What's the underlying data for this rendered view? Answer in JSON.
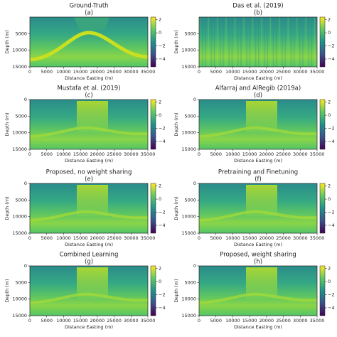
{
  "chart_data": [
    {
      "type": "image",
      "title": "Ground-Truth",
      "subtitle": "(a)",
      "xlabel": "Distance Easting (m)",
      "ylabel": "Depth (m)",
      "colormap": "viridis",
      "xlim": [
        0,
        35000
      ],
      "xticks": [
        0,
        5000,
        10000,
        15000,
        20000,
        25000,
        30000,
        35000
      ],
      "ylim": [
        15000,
        0
      ],
      "yticks": [
        5000,
        10000,
        15000
      ],
      "clim": [
        -5.2,
        2.4
      ],
      "cticks": [
        2,
        0,
        {
          "value": -2,
          "label": "−2"
        },
        {
          "value": -4,
          "label": "−4"
        }
      ]
    },
    {
      "type": "image",
      "title": "Das et al. (2019)",
      "subtitle": "(b)",
      "xlabel": "Distance Easting (m)",
      "ylabel": "Depth (m)",
      "colormap": "viridis",
      "xlim": [
        0,
        35000
      ],
      "xticks": [
        0,
        5000,
        10000,
        15000,
        20000,
        25000,
        30000,
        35000
      ],
      "ylim": [
        15000,
        0
      ],
      "yticks": [
        5000,
        10000,
        15000
      ],
      "clim": [
        -5.2,
        2.4
      ],
      "cticks": [
        2,
        0,
        {
          "value": -2,
          "label": "−2"
        },
        {
          "value": -4,
          "label": "−4"
        }
      ]
    },
    {
      "type": "image",
      "title": "Mustafa et al. (2019)",
      "subtitle": "(c)",
      "xlabel": "Distance Easting (m)",
      "ylabel": "Depth (m)",
      "colormap": "viridis",
      "xlim": [
        0,
        35000
      ],
      "xticks": [
        0,
        5000,
        10000,
        15000,
        20000,
        25000,
        30000,
        35000
      ],
      "ylim": [
        15000,
        0
      ],
      "yticks": [
        0,
        5000,
        10000,
        15000
      ],
      "clim": [
        -5.2,
        2.4
      ],
      "cticks": [
        2,
        0,
        {
          "value": -2,
          "label": "−2"
        },
        {
          "value": -4,
          "label": "−4"
        }
      ]
    },
    {
      "type": "image",
      "title": "Alfarraj and AlRegib (2019a)",
      "subtitle": "(d)",
      "xlabel": "Distance Easting (m)",
      "ylabel": "Depth (m)",
      "colormap": "viridis",
      "xlim": [
        0,
        35000
      ],
      "xticks": [
        0,
        5000,
        10000,
        15000,
        20000,
        25000,
        30000,
        35000
      ],
      "ylim": [
        15000,
        0
      ],
      "yticks": [
        0,
        5000,
        10000,
        15000
      ],
      "clim": [
        -5.2,
        2.4
      ],
      "cticks": [
        2,
        0,
        {
          "value": -2,
          "label": "−2"
        },
        {
          "value": -4,
          "label": "−4"
        }
      ]
    },
    {
      "type": "image",
      "title": "Proposed, no weight sharing",
      "subtitle": "(e)",
      "xlabel": "Distance Easting (m)",
      "ylabel": "Depth (m)",
      "colormap": "viridis",
      "xlim": [
        0,
        35000
      ],
      "xticks": [
        0,
        5000,
        10000,
        15000,
        20000,
        25000,
        30000,
        35000
      ],
      "ylim": [
        15000,
        0
      ],
      "yticks": [
        0,
        5000,
        10000,
        15000
      ],
      "clim": [
        -5.2,
        2.4
      ],
      "cticks": [
        2,
        0,
        {
          "value": -2,
          "label": "−2"
        },
        {
          "value": -4,
          "label": "−4"
        }
      ]
    },
    {
      "type": "image",
      "title": "Pretraining and Finetuning",
      "subtitle": "(f)",
      "xlabel": "Distance Easting (m)",
      "ylabel": "Depth (m)",
      "colormap": "viridis",
      "xlim": [
        0,
        35000
      ],
      "xticks": [
        0,
        5000,
        10000,
        15000,
        20000,
        25000,
        30000,
        35000
      ],
      "ylim": [
        15000,
        0
      ],
      "yticks": [
        0,
        5000,
        10000,
        15000
      ],
      "clim": [
        -5.2,
        2.4
      ],
      "cticks": [
        2,
        0,
        {
          "value": -2,
          "label": "−2"
        },
        {
          "value": -4,
          "label": "−4"
        }
      ]
    },
    {
      "type": "image",
      "title": "Combined Learning",
      "subtitle": "(g)",
      "xlabel": "Distance Easting (m)",
      "ylabel": "Depth (m)",
      "colormap": "viridis",
      "xlim": [
        0,
        35000
      ],
      "xticks": [
        0,
        5000,
        10000,
        15000,
        20000,
        25000,
        30000,
        35000
      ],
      "ylim": [
        15000,
        0
      ],
      "yticks": [
        0,
        5000,
        10000,
        15000
      ],
      "clim": [
        -5.2,
        2.4
      ],
      "cticks": [
        2,
        0,
        {
          "value": -2,
          "label": "−2"
        },
        {
          "value": -4,
          "label": "−4"
        }
      ]
    },
    {
      "type": "image",
      "title": "Proposed, weight sharing",
      "subtitle": "(h)",
      "xlabel": "Distance Easting (m)",
      "ylabel": "Depth (m)",
      "colormap": "viridis",
      "xlim": [
        0,
        35000
      ],
      "xticks": [
        0,
        5000,
        10000,
        15000,
        20000,
        25000,
        30000,
        35000
      ],
      "ylim": [
        15000,
        0
      ],
      "yticks": [
        0,
        5000,
        10000,
        15000
      ],
      "clim": [
        -5.2,
        2.4
      ],
      "cticks": [
        2,
        0,
        {
          "value": -2,
          "label": "−2"
        },
        {
          "value": -4,
          "label": "−4"
        }
      ]
    }
  ]
}
